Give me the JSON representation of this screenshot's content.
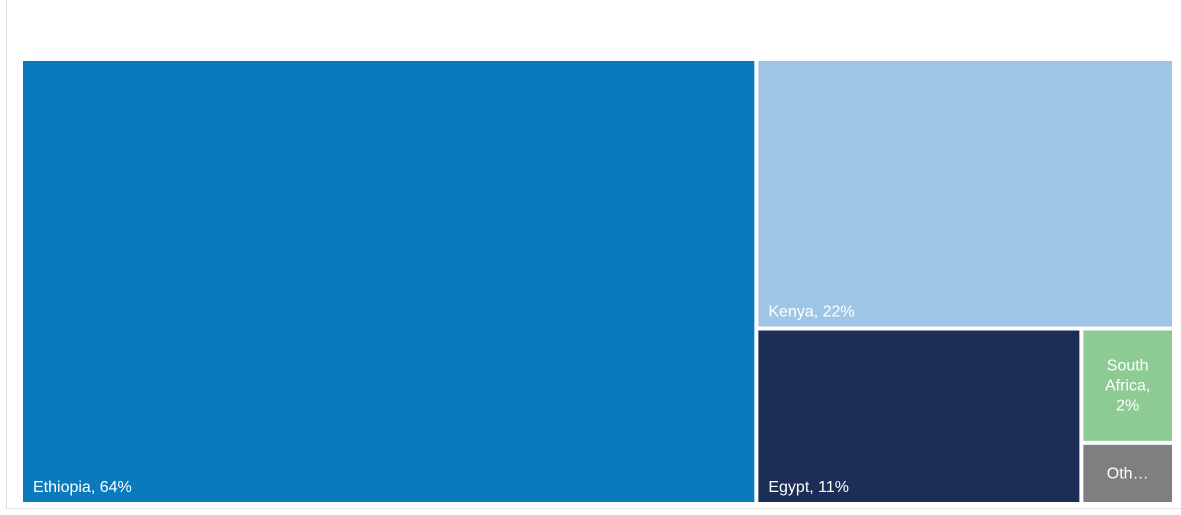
{
  "chart_data": {
    "type": "treemap",
    "title": "",
    "items": [
      {
        "name": "Ethiopia",
        "value": 64,
        "label_lines": [
          "Ethiopia, 64%"
        ],
        "color": "#0a7abe"
      },
      {
        "name": "Kenya",
        "value": 22,
        "label_lines": [
          "Kenya, 22%"
        ],
        "color": "#9fc5e6"
      },
      {
        "name": "Egypt",
        "value": 11,
        "label_lines": [
          "Egypt,  11%"
        ],
        "color": "#1c2e55"
      },
      {
        "name": "South Africa",
        "value": 2,
        "label_lines": [
          "South",
          "Africa,",
          "2%"
        ],
        "color": "#8ccb92"
      },
      {
        "name": "Oth…",
        "value": 1,
        "label_lines": [
          "Oth…"
        ],
        "color": "#7f7f7f"
      }
    ]
  }
}
